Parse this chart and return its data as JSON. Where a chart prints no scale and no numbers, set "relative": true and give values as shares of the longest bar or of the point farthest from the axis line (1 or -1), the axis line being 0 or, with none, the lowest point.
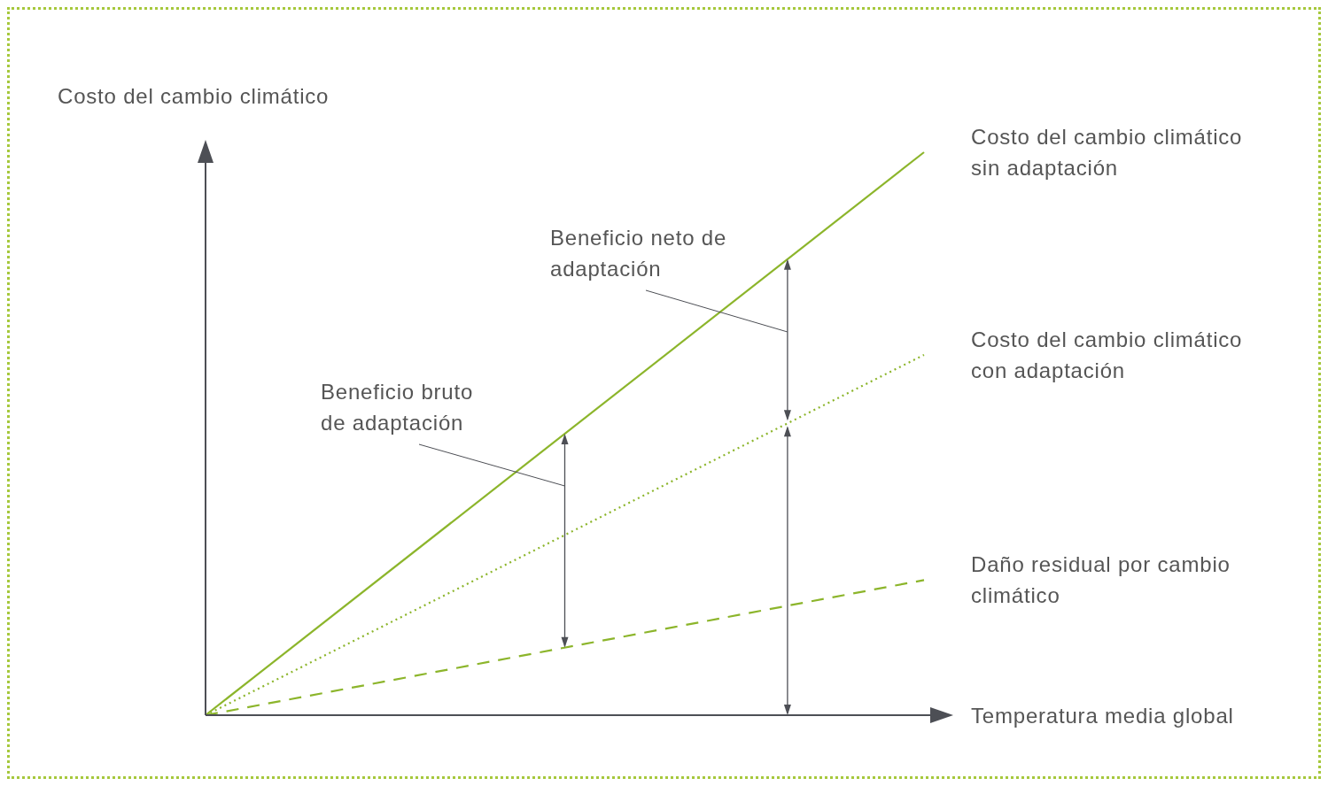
{
  "chart_data": {
    "type": "line",
    "relative": true,
    "ylabel": "Costo del cambio climático",
    "xlabel": "Temperatura media global",
    "categories": [
      null,
      null
    ],
    "legend": false,
    "grid": false,
    "series": [
      {
        "name": "Costo del cambio climático sin adaptación",
        "color": "#8cb52b",
        "line_style": "solid",
        "values": [
          0,
          1
        ]
      },
      {
        "name": "Costo del cambio climático con adaptación",
        "color": "#8cb52b",
        "line_style": "dotted",
        "values": [
          0,
          0.64
        ]
      },
      {
        "name": "Daño residual por cambio climático",
        "color": "#8cb52b",
        "line_style": "dashed",
        "values": [
          0,
          0.24
        ]
      }
    ],
    "annotations": [
      "Beneficio bruto de adaptación",
      "Beneficio neto de adaptación"
    ]
  }
}
